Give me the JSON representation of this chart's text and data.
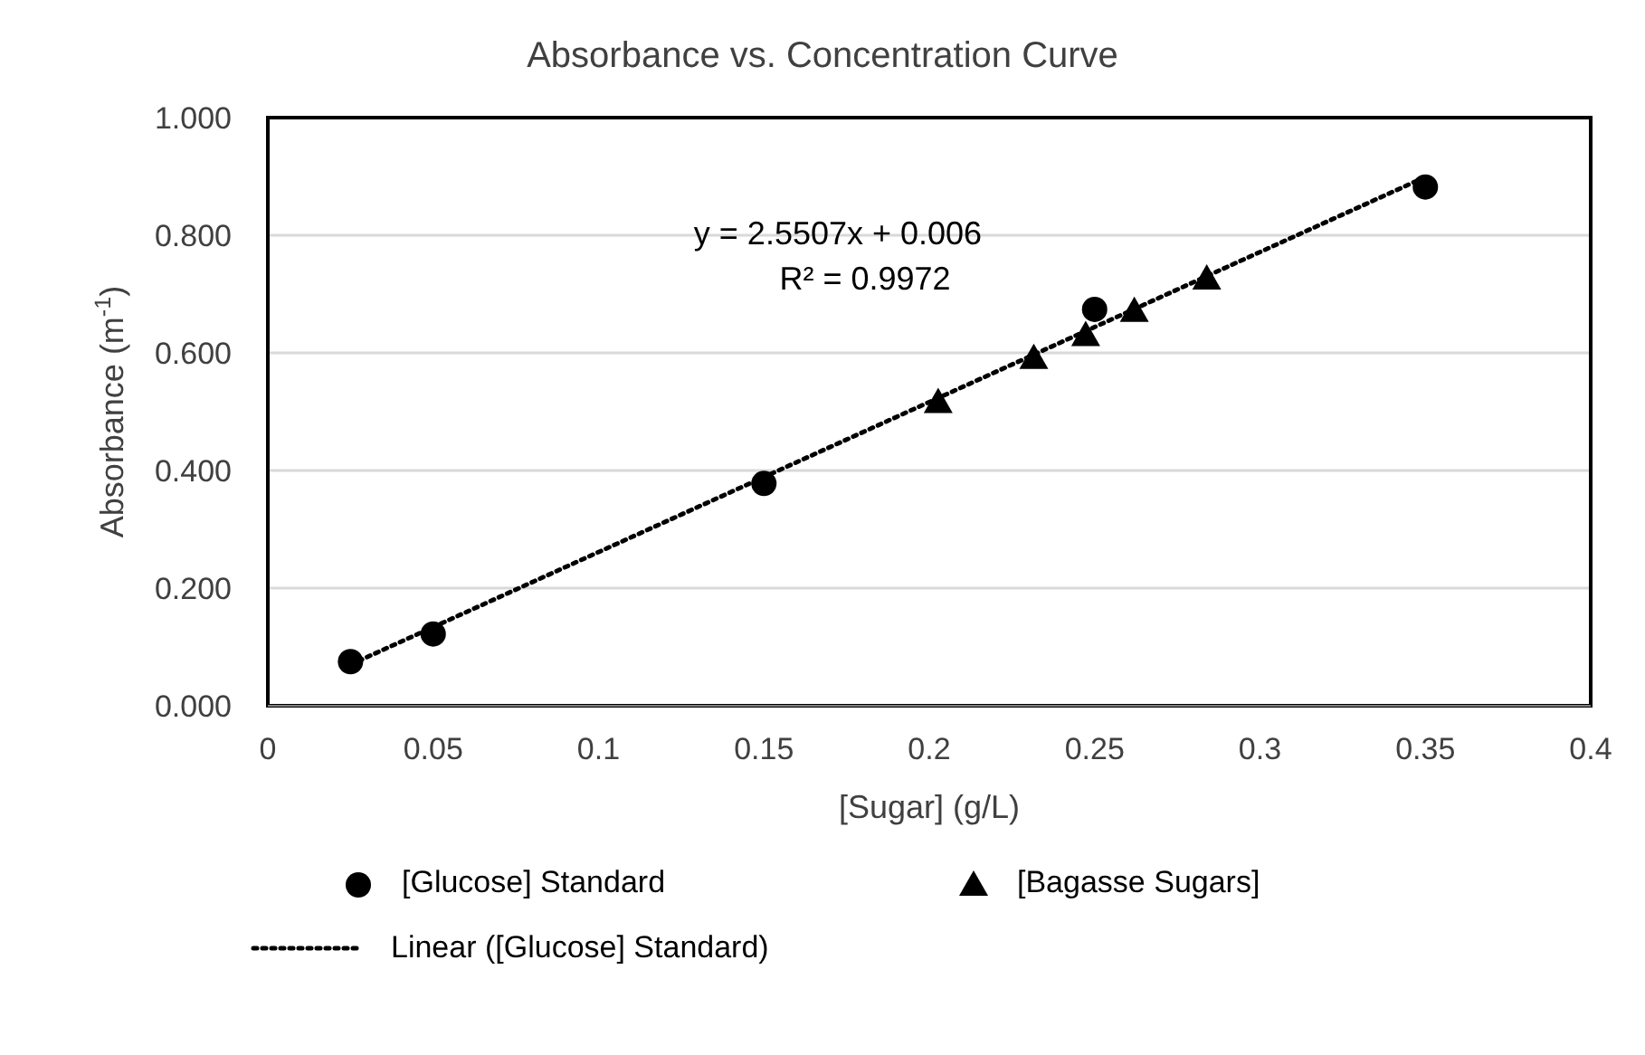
{
  "chart_data": {
    "type": "scatter",
    "title": "Absorbance vs. Concentration Curve",
    "xlabel": "[Sugar] (g/L)",
    "ylabel": "Absorbance (m$^{-1}$)",
    "xlim": [
      0,
      0.4
    ],
    "xticks": [
      0,
      0.05,
      0.1,
      0.15,
      0.2,
      0.25,
      0.3,
      0.35,
      0.4
    ],
    "ylim": [
      0,
      1
    ],
    "yticks": [
      {
        "value": 0,
        "label": "0.000"
      },
      {
        "value": 0.2,
        "label": "0.200"
      },
      {
        "value": 0.4,
        "label": "0.400"
      },
      {
        "value": 0.6,
        "label": "0.600"
      },
      {
        "value": 0.8,
        "label": "0.800"
      },
      {
        "value": 1,
        "label": "1.000"
      }
    ],
    "grid": true,
    "legend": "bottom",
    "annotations": [
      "y = 2.5507x + 0.006",
      "R² = 0.9972"
    ],
    "series": [
      {
        "name": "[Glucose] Standard",
        "marker": "circle",
        "color": "#000000",
        "x": [
          0.025,
          0.05,
          0.15,
          0.25,
          0.35
        ],
        "values": [
          0.075,
          0.122,
          0.378,
          0.674,
          0.882
        ]
      },
      {
        "name": "[Bagasse Sugars]",
        "marker": "triangle",
        "color": "#000000",
        "x": [
          0.2027,
          0.2316,
          0.2473,
          0.262,
          0.2839
        ],
        "values": [
          0.516,
          0.591,
          0.63,
          0.671,
          0.726
        ]
      },
      {
        "name": "Linear ([Glucose] Standard)",
        "type": "line",
        "marker": "none",
        "line_style": "dotted",
        "color": "#000000",
        "x": [
          0.025,
          0.35
        ],
        "values": [
          0.07,
          0.899
        ]
      }
    ]
  }
}
